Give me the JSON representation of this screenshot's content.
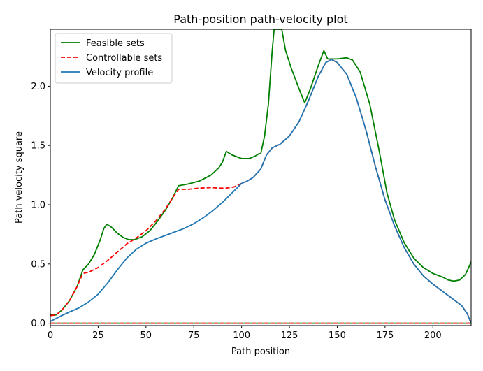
{
  "chart_data": {
    "type": "line",
    "title": "Path-position path-velocity plot",
    "xlabel": "Path position",
    "ylabel": "Path velocity square",
    "xlim": [
      0,
      220
    ],
    "ylim": [
      -0.02,
      2.48
    ],
    "xticks": [
      0,
      25,
      50,
      75,
      100,
      125,
      150,
      175,
      200
    ],
    "yticks": [
      0.0,
      0.5,
      1.0,
      1.5,
      2.0
    ],
    "xtick_labels": [
      "0",
      "25",
      "50",
      "75",
      "100",
      "125",
      "150",
      "175",
      "200"
    ],
    "ytick_labels": [
      "0.0",
      "0.5",
      "1.0",
      "1.5",
      "2.0"
    ],
    "grid": false,
    "legend_position": "top-left",
    "series": [
      {
        "name": "Feasible sets",
        "color": "#008000",
        "style": "solid",
        "points": [
          [
            0,
            0.07
          ],
          [
            3,
            0.07
          ],
          [
            6,
            0.11
          ],
          [
            10,
            0.19
          ],
          [
            14,
            0.31
          ],
          [
            17,
            0.45
          ],
          [
            20,
            0.5
          ],
          [
            23,
            0.58
          ],
          [
            26,
            0.7
          ],
          [
            28,
            0.8
          ],
          [
            29.5,
            0.835
          ],
          [
            32,
            0.81
          ],
          [
            35,
            0.76
          ],
          [
            38,
            0.725
          ],
          [
            41,
            0.705
          ],
          [
            44,
            0.705
          ],
          [
            48,
            0.73
          ],
          [
            52,
            0.78
          ],
          [
            56,
            0.86
          ],
          [
            60,
            0.95
          ],
          [
            64,
            1.06
          ],
          [
            67,
            1.16
          ],
          [
            72,
            1.175
          ],
          [
            78,
            1.2
          ],
          [
            84,
            1.25
          ],
          [
            88,
            1.31
          ],
          [
            90,
            1.36
          ],
          [
            92,
            1.45
          ],
          [
            95,
            1.42
          ],
          [
            100,
            1.39
          ],
          [
            104,
            1.39
          ],
          [
            107,
            1.41
          ],
          [
            109,
            1.43
          ],
          [
            110,
            1.43
          ],
          [
            112,
            1.58
          ],
          [
            114,
            1.85
          ],
          [
            116,
            2.3
          ],
          [
            117,
            2.48
          ],
          [
            121,
            2.48
          ],
          [
            123,
            2.3
          ],
          [
            126,
            2.15
          ],
          [
            130,
            1.98
          ],
          [
            133,
            1.86
          ],
          [
            136,
            1.98
          ],
          [
            140,
            2.17
          ],
          [
            143,
            2.3
          ],
          [
            145,
            2.23
          ],
          [
            150,
            2.23
          ],
          [
            155,
            2.24
          ],
          [
            158,
            2.22
          ],
          [
            162,
            2.12
          ],
          [
            167,
            1.85
          ],
          [
            172,
            1.45
          ],
          [
            176,
            1.1
          ],
          [
            180,
            0.87
          ],
          [
            185,
            0.68
          ],
          [
            190,
            0.55
          ],
          [
            195,
            0.47
          ],
          [
            200,
            0.42
          ],
          [
            205,
            0.39
          ],
          [
            208,
            0.365
          ],
          [
            211,
            0.355
          ],
          [
            214,
            0.365
          ],
          [
            217,
            0.41
          ],
          [
            219,
            0.48
          ],
          [
            220,
            0.52
          ]
        ]
      },
      {
        "name": "Controllable sets",
        "color": "#ff0000",
        "style": "dashed",
        "points": [
          [
            0,
            0.065
          ],
          [
            3,
            0.07
          ],
          [
            6,
            0.11
          ],
          [
            10,
            0.19
          ],
          [
            14,
            0.31
          ],
          [
            17,
            0.42
          ],
          [
            20,
            0.43
          ],
          [
            25,
            0.47
          ],
          [
            30,
            0.53
          ],
          [
            35,
            0.6
          ],
          [
            40,
            0.67
          ],
          [
            45,
            0.72
          ],
          [
            50,
            0.78
          ],
          [
            55,
            0.86
          ],
          [
            60,
            0.96
          ],
          [
            64,
            1.06
          ],
          [
            67,
            1.13
          ],
          [
            72,
            1.13
          ],
          [
            78,
            1.14
          ],
          [
            84,
            1.145
          ],
          [
            88,
            1.14
          ],
          [
            92,
            1.14
          ],
          [
            96,
            1.15
          ],
          [
            100,
            1.18
          ],
          [
            103,
            1.2
          ],
          [
            106,
            1.23
          ],
          [
            110,
            1.3
          ],
          [
            113,
            1.42
          ],
          [
            116,
            1.48
          ],
          [
            120,
            1.51
          ],
          [
            125,
            1.58
          ],
          [
            130,
            1.7
          ],
          [
            135,
            1.88
          ],
          [
            140,
            2.08
          ],
          [
            144,
            2.2
          ],
          [
            147,
            2.225
          ],
          [
            150,
            2.2
          ],
          [
            155,
            2.1
          ],
          [
            160,
            1.9
          ],
          [
            165,
            1.63
          ],
          [
            170,
            1.32
          ],
          [
            175,
            1.04
          ],
          [
            180,
            0.82
          ],
          [
            185,
            0.64
          ],
          [
            190,
            0.5
          ],
          [
            195,
            0.4
          ],
          [
            200,
            0.33
          ],
          [
            205,
            0.27
          ],
          [
            210,
            0.21
          ],
          [
            215,
            0.15
          ],
          [
            218,
            0.08
          ],
          [
            220,
            0.0
          ]
        ]
      },
      {
        "name": "Velocity profile",
        "color": "#1f77b4",
        "style": "solid",
        "points": [
          [
            0,
            0.015
          ],
          [
            3,
            0.04
          ],
          [
            6,
            0.065
          ],
          [
            10,
            0.095
          ],
          [
            15,
            0.13
          ],
          [
            20,
            0.18
          ],
          [
            25,
            0.245
          ],
          [
            30,
            0.34
          ],
          [
            35,
            0.45
          ],
          [
            40,
            0.55
          ],
          [
            45,
            0.625
          ],
          [
            50,
            0.675
          ],
          [
            55,
            0.71
          ],
          [
            60,
            0.74
          ],
          [
            65,
            0.77
          ],
          [
            70,
            0.8
          ],
          [
            75,
            0.84
          ],
          [
            80,
            0.89
          ],
          [
            85,
            0.95
          ],
          [
            90,
            1.02
          ],
          [
            95,
            1.1
          ],
          [
            100,
            1.18
          ],
          [
            103,
            1.2
          ],
          [
            106,
            1.23
          ],
          [
            110,
            1.3
          ],
          [
            113,
            1.42
          ],
          [
            116,
            1.48
          ],
          [
            120,
            1.51
          ],
          [
            125,
            1.58
          ],
          [
            130,
            1.7
          ],
          [
            135,
            1.88
          ],
          [
            140,
            2.08
          ],
          [
            144,
            2.2
          ],
          [
            147,
            2.225
          ],
          [
            150,
            2.2
          ],
          [
            155,
            2.1
          ],
          [
            160,
            1.9
          ],
          [
            165,
            1.63
          ],
          [
            170,
            1.32
          ],
          [
            175,
            1.04
          ],
          [
            180,
            0.82
          ],
          [
            185,
            0.64
          ],
          [
            190,
            0.5
          ],
          [
            195,
            0.4
          ],
          [
            200,
            0.33
          ],
          [
            205,
            0.27
          ],
          [
            210,
            0.21
          ],
          [
            215,
            0.15
          ],
          [
            218,
            0.08
          ],
          [
            220,
            0.0
          ]
        ]
      },
      {
        "name": "",
        "color": "#008000",
        "style": "solid",
        "points": [
          [
            0,
            0.0
          ],
          [
            220,
            0.0
          ]
        ]
      },
      {
        "name": "",
        "color": "#ff0000",
        "style": "dashed",
        "points": [
          [
            0,
            0.0
          ],
          [
            220,
            0.0
          ]
        ]
      }
    ]
  }
}
